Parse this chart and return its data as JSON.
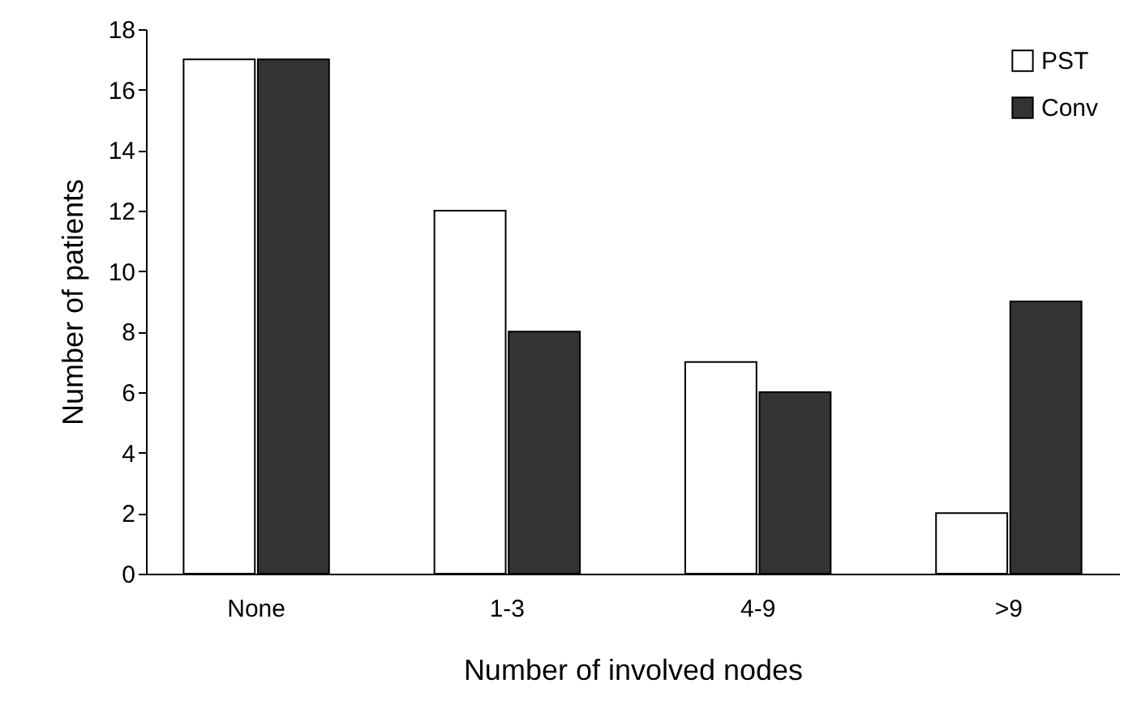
{
  "chart_data": {
    "type": "bar",
    "xlabel": "Number of involved nodes",
    "ylabel": "Number of patients",
    "categories": [
      "None",
      "1-3",
      "4-9",
      ">9"
    ],
    "series": [
      {
        "name": "PST",
        "color": "#ffffff",
        "values": [
          17,
          12,
          7,
          2
        ]
      },
      {
        "name": "Conv",
        "color": "#333333",
        "values": [
          17,
          8,
          6,
          9
        ]
      }
    ],
    "ylim": [
      0,
      18
    ],
    "yticks": [
      0,
      2,
      4,
      6,
      8,
      10,
      12,
      14,
      16,
      18
    ],
    "legend": "top right"
  }
}
